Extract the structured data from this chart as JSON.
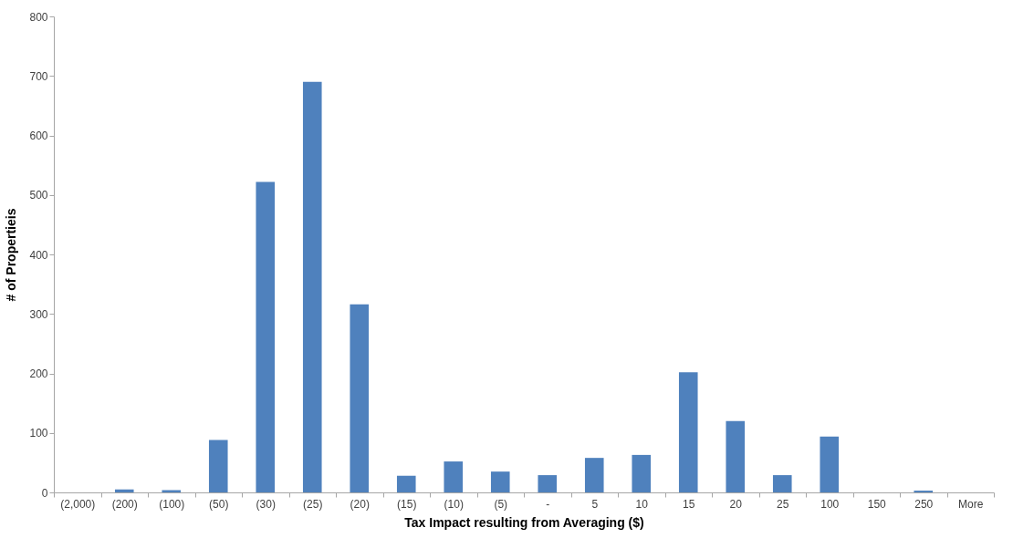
{
  "chart_data": {
    "type": "bar",
    "xlabel": "Tax Impact resulting from Averaging ($)",
    "ylabel": "# of Propertieis",
    "categories": [
      "(2,000)",
      "(200)",
      "(100)",
      "(50)",
      "(30)",
      "(25)",
      "(20)",
      "(15)",
      "(10)",
      "(5)",
      "-",
      "5",
      "10",
      "15",
      "20",
      "25",
      "100",
      "150",
      "250",
      "More"
    ],
    "values": [
      0,
      5,
      4,
      88,
      522,
      690,
      316,
      28,
      52,
      35,
      29,
      58,
      63,
      202,
      120,
      29,
      94,
      0,
      3,
      0
    ],
    "color": "#4f81bd",
    "ylim": [
      0,
      800
    ],
    "yticks": [
      0,
      100,
      200,
      300,
      400,
      500,
      600,
      700,
      800
    ],
    "grid": false
  }
}
